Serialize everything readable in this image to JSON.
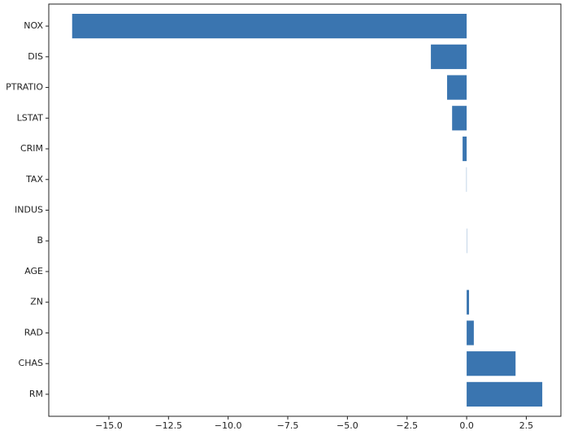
{
  "chart_data": {
    "type": "barh",
    "categories": [
      "NOX",
      "DIS",
      "PTRATIO",
      "LSTAT",
      "CRIM",
      "TAX",
      "INDUS",
      "B",
      "AGE",
      "ZN",
      "RAD",
      "CHAS",
      "RM"
    ],
    "values": [
      -16.54,
      -1.5,
      -0.82,
      -0.61,
      -0.17,
      -0.01,
      0.0,
      0.01,
      0.0,
      0.1,
      0.3,
      2.05,
      3.17
    ],
    "color": "#3a75b0",
    "xlim": [
      -17.52,
      3.95
    ],
    "xticks": [
      {
        "value": -15,
        "label": "−15.0"
      },
      {
        "value": -12.5,
        "label": "−12.5"
      },
      {
        "value": -10,
        "label": "−10.0"
      },
      {
        "value": -7.5,
        "label": "−7.5"
      },
      {
        "value": -5,
        "label": "−5.0"
      },
      {
        "value": -2.5,
        "label": "−2.5"
      },
      {
        "value": 0,
        "label": "0.0"
      },
      2.5
    ],
    "grid": false
  }
}
